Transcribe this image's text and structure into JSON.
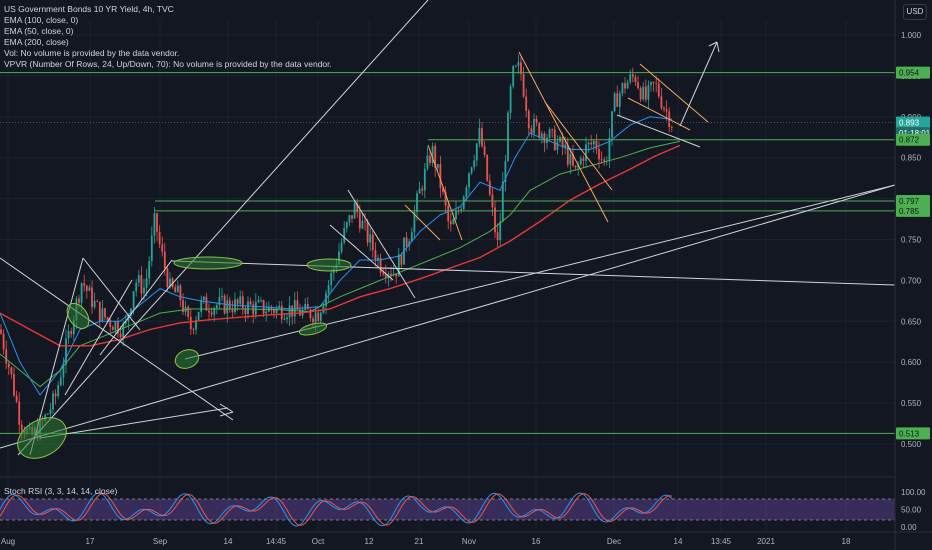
{
  "legend": {
    "title": "US Government Bonds 10 YR Yield, 4h, TVC",
    "lines": [
      "EMA (100, close, 0)",
      "EMA (50, close, 0)",
      "EMA (200, close)",
      "Vol: No volume is provided by the data vendor.",
      "VPVR (Number Of Rows, 24, Up/Down, 70): No volume is provided by the data vendor."
    ]
  },
  "currency_button": "USD",
  "rsi_title": "Stoch RSI (3, 3, 14, 14, close)",
  "colors": {
    "background": "#131722",
    "grid": "#1e222d",
    "green_level": "#4caf50",
    "ema_red": "#e53935",
    "ema_blue": "#2196f3",
    "ema_green": "#4caf50",
    "up_candle": "#26a69a",
    "down_candle": "#ef5350",
    "trendline": "#d1d4dc",
    "channel": "#f5a85c",
    "rsi_k": "#2196f3",
    "rsi_d": "#ef5350",
    "rsi_band": "#7e57c2"
  },
  "chart_data": {
    "type": "candlestick",
    "y_axis": {
      "range": [
        0.47,
        1.02
      ],
      "ticks": [
        "1.000",
        "0.950",
        "0.900",
        "0.850",
        "0.800",
        "0.750",
        "0.700",
        "0.650",
        "0.600",
        "0.550",
        "0.500"
      ]
    },
    "x_axis": {
      "ticks": [
        "Aug",
        "17",
        "Sep",
        "14",
        "14:45",
        "Oct",
        "12",
        "21",
        "Nov",
        "16",
        "Dec",
        "14",
        "13:45",
        "2021",
        "18"
      ]
    },
    "price_labels": [
      {
        "text": "0.954",
        "kind": "level"
      },
      {
        "text": "0.893",
        "kind": "last"
      },
      {
        "text": "01:18:01",
        "kind": "countdown"
      },
      {
        "text": "0.872",
        "kind": "level"
      },
      {
        "text": "0.797",
        "kind": "level"
      },
      {
        "text": "0.785",
        "kind": "level"
      },
      {
        "text": "0.513",
        "kind": "level"
      }
    ],
    "horizontal_levels": [
      0.954,
      0.872,
      0.797,
      0.785,
      0.513
    ],
    "last_price": 0.893,
    "series": [
      {
        "points": [
          [
            0,
            0.64
          ],
          [
            10,
            0.59
          ],
          [
            20,
            0.53
          ],
          [
            30,
            0.508
          ],
          [
            40,
            0.52
          ],
          [
            55,
            0.555
          ],
          [
            70,
            0.64
          ],
          [
            82,
            0.7
          ],
          [
            90,
            0.68
          ],
          [
            100,
            0.66
          ],
          [
            110,
            0.65
          ],
          [
            125,
            0.64
          ],
          [
            135,
            0.7
          ],
          [
            145,
            0.69
          ],
          [
            155,
            0.775
          ],
          [
            160,
            0.74
          ],
          [
            170,
            0.69
          ],
          [
            180,
            0.68
          ],
          [
            190,
            0.64
          ],
          [
            200,
            0.67
          ],
          [
            215,
            0.67
          ],
          [
            230,
            0.67
          ],
          [
            250,
            0.668
          ],
          [
            270,
            0.665
          ],
          [
            290,
            0.665
          ],
          [
            305,
            0.66
          ],
          [
            318,
            0.66
          ],
          [
            330,
            0.7
          ],
          [
            345,
            0.76
          ],
          [
            355,
            0.79
          ],
          [
            365,
            0.76
          ],
          [
            380,
            0.72
          ],
          [
            395,
            0.71
          ],
          [
            410,
            0.76
          ],
          [
            420,
            0.81
          ],
          [
            432,
            0.86
          ],
          [
            440,
            0.82
          ],
          [
            450,
            0.76
          ],
          [
            460,
            0.79
          ],
          [
            470,
            0.84
          ],
          [
            480,
            0.88
          ],
          [
            490,
            0.8
          ],
          [
            498,
            0.74
          ],
          [
            505,
            0.85
          ],
          [
            512,
            0.95
          ],
          [
            520,
            0.96
          ],
          [
            530,
            0.89
          ],
          [
            545,
            0.88
          ],
          [
            555,
            0.87
          ],
          [
            565,
            0.86
          ],
          [
            575,
            0.83
          ],
          [
            585,
            0.86
          ],
          [
            595,
            0.87
          ],
          [
            605,
            0.84
          ],
          [
            615,
            0.92
          ],
          [
            625,
            0.94
          ],
          [
            635,
            0.95
          ],
          [
            645,
            0.92
          ],
          [
            655,
            0.94
          ],
          [
            665,
            0.91
          ],
          [
            672,
            0.893
          ]
        ]
      },
      {
        "points": [
          [
            0,
            0.66
          ],
          [
            20,
            0.6
          ],
          [
            40,
            0.56
          ],
          [
            60,
            0.59
          ],
          [
            80,
            0.64
          ],
          [
            100,
            0.65
          ],
          [
            120,
            0.65
          ],
          [
            140,
            0.67
          ],
          [
            160,
            0.69
          ],
          [
            180,
            0.68
          ],
          [
            200,
            0.675
          ],
          [
            230,
            0.67
          ],
          [
            260,
            0.668
          ],
          [
            290,
            0.665
          ],
          [
            320,
            0.668
          ],
          [
            340,
            0.7
          ],
          [
            360,
            0.725
          ],
          [
            380,
            0.725
          ],
          [
            400,
            0.73
          ],
          [
            420,
            0.76
          ],
          [
            440,
            0.78
          ],
          [
            460,
            0.79
          ],
          [
            480,
            0.82
          ],
          [
            500,
            0.81
          ],
          [
            515,
            0.85
          ],
          [
            530,
            0.88
          ],
          [
            550,
            0.87
          ],
          [
            570,
            0.86
          ],
          [
            590,
            0.86
          ],
          [
            610,
            0.87
          ],
          [
            630,
            0.89
          ],
          [
            650,
            0.9
          ],
          [
            672,
            0.897
          ]
        ]
      },
      {
        "points": [
          [
            0,
            0.61
          ],
          [
            20,
            0.59
          ],
          [
            40,
            0.57
          ],
          [
            60,
            0.59
          ],
          [
            80,
            0.62
          ],
          [
            100,
            0.63
          ],
          [
            120,
            0.64
          ],
          [
            140,
            0.65
          ],
          [
            160,
            0.66
          ],
          [
            190,
            0.665
          ],
          [
            220,
            0.665
          ],
          [
            250,
            0.665
          ],
          [
            280,
            0.664
          ],
          [
            310,
            0.662
          ],
          [
            340,
            0.68
          ],
          [
            370,
            0.695
          ],
          [
            400,
            0.71
          ],
          [
            430,
            0.725
          ],
          [
            460,
            0.74
          ],
          [
            490,
            0.76
          ],
          [
            510,
            0.78
          ],
          [
            530,
            0.81
          ],
          [
            560,
            0.83
          ],
          [
            590,
            0.84
          ],
          [
            620,
            0.85
          ],
          [
            650,
            0.862
          ],
          [
            680,
            0.87
          ]
        ]
      },
      {
        "points": [
          [
            0,
            0.66
          ],
          [
            30,
            0.64
          ],
          [
            60,
            0.62
          ],
          [
            90,
            0.62
          ],
          [
            120,
            0.628
          ],
          [
            150,
            0.64
          ],
          [
            180,
            0.648
          ],
          [
            210,
            0.652
          ],
          [
            240,
            0.655
          ],
          [
            270,
            0.658
          ],
          [
            300,
            0.66
          ],
          [
            330,
            0.665
          ],
          [
            360,
            0.68
          ],
          [
            390,
            0.69
          ],
          [
            420,
            0.702
          ],
          [
            450,
            0.715
          ],
          [
            480,
            0.728
          ],
          [
            510,
            0.748
          ],
          [
            540,
            0.772
          ],
          [
            570,
            0.798
          ],
          [
            600,
            0.818
          ],
          [
            630,
            0.836
          ],
          [
            655,
            0.852
          ],
          [
            680,
            0.865
          ]
        ]
      }
    ]
  }
}
